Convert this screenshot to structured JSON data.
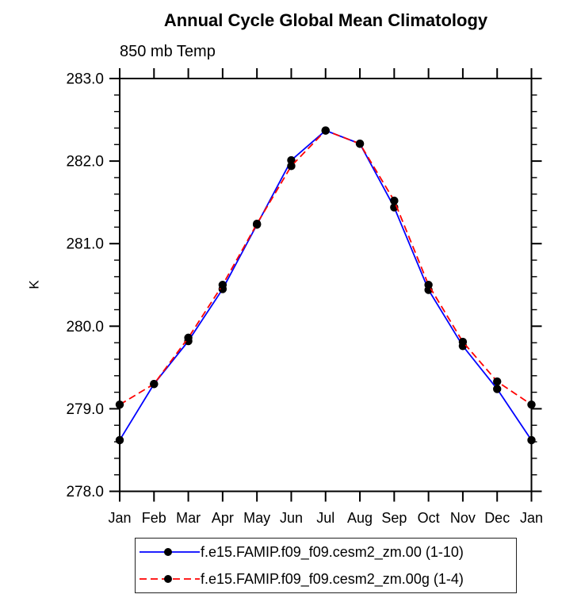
{
  "chart_data": {
    "type": "line",
    "title": "Annual Cycle Global Mean Climatology",
    "subtitle": "850 mb Temp",
    "ylabel": "K",
    "xlabel": "",
    "categories": [
      "Jan",
      "Feb",
      "Mar",
      "Apr",
      "May",
      "Jun",
      "Jul",
      "Aug",
      "Sep",
      "Oct",
      "Nov",
      "Dec",
      "Jan"
    ],
    "ylim": [
      278.0,
      283.0
    ],
    "ytick_labels": [
      "278.0",
      "279.0",
      "280.0",
      "281.0",
      "282.0",
      "283.0"
    ],
    "ytick_major_step": 1.0,
    "ytick_minor_step": 0.2,
    "grid": false,
    "legend_position": "bottom",
    "marker": "filled-circle",
    "marker_color": "#000000",
    "axis_color": "#000000",
    "series": [
      {
        "name": "f.e15.FAMIP.f09_f09.cesm2_zm.00 (1-10)",
        "color": "#0000ff",
        "line_style": "solid",
        "values": [
          278.62,
          279.3,
          279.82,
          280.45,
          281.23,
          282.01,
          282.37,
          282.21,
          281.44,
          280.44,
          279.76,
          279.24,
          278.62
        ]
      },
      {
        "name": "f.e15.FAMIP.f09_f09.cesm2_zm.00g (1-4)",
        "color": "#ff0000",
        "line_style": "dashed",
        "values": [
          279.05,
          279.3,
          279.86,
          280.5,
          281.24,
          281.94,
          282.37,
          282.21,
          281.52,
          280.5,
          279.81,
          279.33,
          279.05
        ]
      }
    ]
  }
}
